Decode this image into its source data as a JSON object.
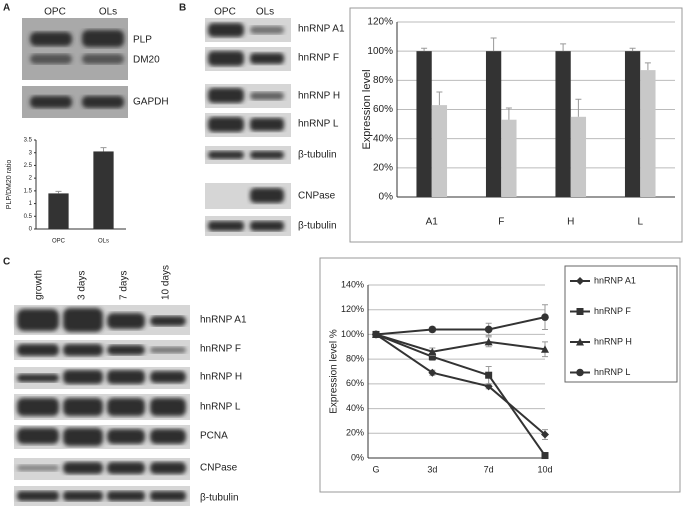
{
  "panels": {
    "a": {
      "letter": "A",
      "lanes": [
        "OPC",
        "OLs"
      ],
      "bands": [
        "PLP",
        "DM20",
        "GAPDH"
      ]
    },
    "b": {
      "letter": "B",
      "lanes": [
        "OPC",
        "OLs"
      ],
      "bands": [
        "hnRNP A1",
        "hnRNP F",
        "hnRNP H",
        "hnRNP L",
        "β-tubulin",
        "CNPase",
        "β-tubulin"
      ]
    },
    "c": {
      "letter": "C",
      "lanes": [
        "growth",
        "3 days",
        "7 days",
        "10 days"
      ],
      "bands": [
        "hnRNP A1",
        "hnRNP F",
        "hnRNP H",
        "hnRNP L",
        "PCNA",
        "CNPase",
        "β-tubulin"
      ]
    }
  },
  "chart_data": [
    {
      "type": "bar",
      "y_label": "PLP/DM20 ratio",
      "categories": [
        "OPC",
        "OLs"
      ],
      "values": [
        1.4,
        3.05
      ],
      "errors": [
        0.08,
        0.15
      ],
      "color": "#333333",
      "ylim": [
        0,
        3.5
      ],
      "yticks": [
        0,
        0.5,
        1,
        1.5,
        2,
        2.5,
        3,
        3.5
      ],
      "grid": false
    },
    {
      "type": "bar",
      "y_label": "Expression level",
      "categories": [
        "A1",
        "F",
        "H",
        "L"
      ],
      "series": [
        {
          "color": "#333333",
          "values": [
            100,
            100,
            100,
            100
          ],
          "errors": [
            2,
            9,
            5,
            2
          ]
        },
        {
          "color": "#c8c8c8",
          "values": [
            63,
            53,
            55,
            87
          ],
          "errors": [
            9,
            8,
            12,
            5
          ]
        }
      ],
      "ylim": [
        0,
        120
      ],
      "yticks": [
        {
          "value": 0,
          "label": "0%"
        },
        {
          "value": 20,
          "label": "20%"
        },
        {
          "value": 40,
          "label": "40%"
        },
        {
          "value": 60,
          "label": "60%"
        },
        {
          "value": 80,
          "label": "80%"
        },
        {
          "value": 100,
          "label": "100%"
        },
        {
          "value": 120,
          "label": "120%"
        }
      ],
      "grid": true
    },
    {
      "type": "line",
      "y_label": "Expression level %",
      "categories": [
        "G",
        "3d",
        "7d",
        "10d"
      ],
      "series": [
        {
          "name": "hnRNP A1",
          "marker": "diamond",
          "color": "#333333",
          "values": [
            100,
            69,
            58,
            19
          ],
          "errors": [
            0,
            2,
            2,
            4
          ]
        },
        {
          "name": "hnRNP F",
          "marker": "square",
          "color": "#333333",
          "values": [
            100,
            82,
            67,
            2
          ],
          "errors": [
            0,
            3,
            7,
            2
          ]
        },
        {
          "name": "hnRNP H",
          "marker": "triangle",
          "color": "#333333",
          "values": [
            100,
            86,
            94,
            88
          ],
          "errors": [
            0,
            3,
            4,
            6
          ]
        },
        {
          "name": "hnRNP L",
          "marker": "circle",
          "color": "#333333",
          "values": [
            100,
            104,
            104,
            114
          ],
          "errors": [
            0,
            2,
            5,
            10
          ]
        }
      ],
      "ylim": [
        0,
        140
      ],
      "yticks": [
        {
          "value": 0,
          "label": "0%"
        },
        {
          "value": 20,
          "label": "20%"
        },
        {
          "value": 40,
          "label": "40%"
        },
        {
          "value": 60,
          "label": "60%"
        },
        {
          "value": 80,
          "label": "80%"
        },
        {
          "value": 100,
          "label": "100%"
        },
        {
          "value": 120,
          "label": "120%"
        },
        {
          "value": 140,
          "label": "140%"
        }
      ],
      "grid": true,
      "legend": "right"
    }
  ]
}
